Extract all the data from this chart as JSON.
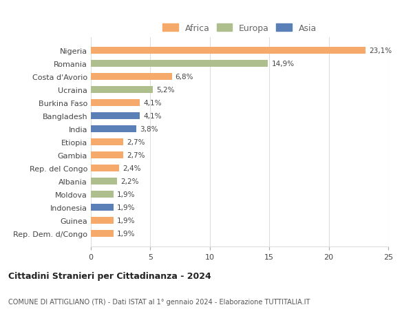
{
  "countries": [
    "Nigeria",
    "Romania",
    "Costa d'Avorio",
    "Ucraina",
    "Burkina Faso",
    "Bangladesh",
    "India",
    "Etiopia",
    "Gambia",
    "Rep. del Congo",
    "Albania",
    "Moldova",
    "Indonesia",
    "Guinea",
    "Rep. Dem. d/Congo"
  ],
  "values": [
    23.1,
    14.9,
    6.8,
    5.2,
    4.1,
    4.1,
    3.8,
    2.7,
    2.7,
    2.4,
    2.2,
    1.9,
    1.9,
    1.9,
    1.9
  ],
  "labels": [
    "23,1%",
    "14,9%",
    "6,8%",
    "5,2%",
    "4,1%",
    "4,1%",
    "3,8%",
    "2,7%",
    "2,7%",
    "2,4%",
    "2,2%",
    "1,9%",
    "1,9%",
    "1,9%",
    "1,9%"
  ],
  "continents": [
    "Africa",
    "Europa",
    "Africa",
    "Europa",
    "Africa",
    "Asia",
    "Asia",
    "Africa",
    "Africa",
    "Africa",
    "Europa",
    "Europa",
    "Asia",
    "Africa",
    "Africa"
  ],
  "colors": {
    "Africa": "#F5A96B",
    "Europa": "#AEBE8C",
    "Asia": "#5B80B8"
  },
  "xlim": [
    0,
    25
  ],
  "xticks": [
    0,
    5,
    10,
    15,
    20,
    25
  ],
  "title": "Cittadini Stranieri per Cittadinanza - 2024",
  "subtitle": "COMUNE DI ATTIGLIANO (TR) - Dati ISTAT al 1° gennaio 2024 - Elaborazione TUTTITALIA.IT",
  "background_color": "#ffffff",
  "bar_height": 0.55,
  "grid_color": "#dddddd"
}
